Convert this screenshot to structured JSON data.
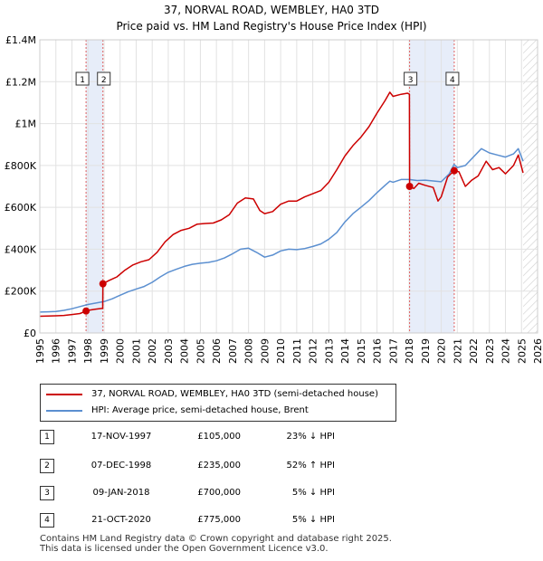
{
  "chart_data": {
    "type": "line",
    "title": "37, NORVAL ROAD, WEMBLEY, HA0 3TD",
    "subtitle": "Price paid vs. HM Land Registry's House Price Index (HPI)",
    "xlabel": "",
    "ylabel": "",
    "xlim": [
      1995,
      2026
    ],
    "ylim": [
      0,
      1400000
    ],
    "x_ticks": [
      1995,
      1996,
      1997,
      1998,
      1999,
      2000,
      2001,
      2002,
      2003,
      2004,
      2005,
      2006,
      2007,
      2008,
      2009,
      2010,
      2011,
      2012,
      2013,
      2014,
      2015,
      2016,
      2017,
      2018,
      2019,
      2020,
      2021,
      2022,
      2023,
      2024,
      2025,
      2026
    ],
    "y_ticks": [
      {
        "value": 0,
        "label": "£0"
      },
      {
        "value": 200000,
        "label": "£200K"
      },
      {
        "value": 400000,
        "label": "£400K"
      },
      {
        "value": 600000,
        "label": "£600K"
      },
      {
        "value": 800000,
        "label": "£800K"
      },
      {
        "value": 1000000,
        "label": "£1M"
      },
      {
        "value": 1200000,
        "label": "£1.2M"
      },
      {
        "value": 1400000,
        "label": "£1.4M"
      }
    ],
    "grid": true,
    "series": [
      {
        "name": "37, NORVAL ROAD, WEMBLEY, HA0 3TD (semi-detached house)",
        "color": "#cc0000",
        "points": [
          [
            1995.0,
            80000
          ],
          [
            1995.5,
            81000
          ],
          [
            1996.0,
            82000
          ],
          [
            1996.5,
            84000
          ],
          [
            1997.0,
            88000
          ],
          [
            1997.5,
            93000
          ],
          [
            1997.88,
            105000
          ],
          [
            1998.0,
            108000
          ],
          [
            1998.5,
            114000
          ],
          [
            1998.92,
            118000
          ],
          [
            1998.93,
            235000
          ],
          [
            1999.3,
            250000
          ],
          [
            1999.8,
            268000
          ],
          [
            2000.3,
            300000
          ],
          [
            2000.8,
            325000
          ],
          [
            2001.3,
            340000
          ],
          [
            2001.8,
            350000
          ],
          [
            2002.3,
            385000
          ],
          [
            2002.8,
            435000
          ],
          [
            2003.3,
            470000
          ],
          [
            2003.8,
            490000
          ],
          [
            2004.3,
            500000
          ],
          [
            2004.8,
            520000
          ],
          [
            2005.3,
            523000
          ],
          [
            2005.8,
            525000
          ],
          [
            2006.3,
            540000
          ],
          [
            2006.8,
            565000
          ],
          [
            2007.3,
            620000
          ],
          [
            2007.8,
            645000
          ],
          [
            2008.3,
            640000
          ],
          [
            2008.7,
            585000
          ],
          [
            2009.0,
            570000
          ],
          [
            2009.5,
            580000
          ],
          [
            2010.0,
            615000
          ],
          [
            2010.5,
            630000
          ],
          [
            2011.0,
            630000
          ],
          [
            2011.5,
            650000
          ],
          [
            2012.0,
            665000
          ],
          [
            2012.5,
            680000
          ],
          [
            2013.0,
            720000
          ],
          [
            2013.5,
            780000
          ],
          [
            2014.0,
            845000
          ],
          [
            2014.5,
            895000
          ],
          [
            2015.0,
            935000
          ],
          [
            2015.5,
            985000
          ],
          [
            2016.0,
            1050000
          ],
          [
            2016.5,
            1110000
          ],
          [
            2016.8,
            1150000
          ],
          [
            2017.0,
            1130000
          ],
          [
            2017.5,
            1140000
          ],
          [
            2017.9,
            1145000
          ],
          [
            2018.02,
            1140000
          ],
          [
            2018.03,
            700000
          ],
          [
            2018.3,
            690000
          ],
          [
            2018.6,
            715000
          ],
          [
            2019.0,
            705000
          ],
          [
            2019.5,
            695000
          ],
          [
            2019.8,
            630000
          ],
          [
            2020.0,
            650000
          ],
          [
            2020.4,
            745000
          ],
          [
            2020.8,
            775000
          ],
          [
            2021.1,
            770000
          ],
          [
            2021.5,
            700000
          ],
          [
            2021.9,
            730000
          ],
          [
            2022.3,
            750000
          ],
          [
            2022.8,
            820000
          ],
          [
            2023.2,
            780000
          ],
          [
            2023.6,
            790000
          ],
          [
            2024.0,
            760000
          ],
          [
            2024.5,
            800000
          ],
          [
            2024.8,
            850000
          ],
          [
            2025.1,
            765000
          ]
        ]
      },
      {
        "name": "HPI: Average price, semi-detached house, Brent",
        "color": "#5b8fd0",
        "points": [
          [
            1995.0,
            100000
          ],
          [
            1995.5,
            101000
          ],
          [
            1996.0,
            103000
          ],
          [
            1996.5,
            108000
          ],
          [
            1997.0,
            116000
          ],
          [
            1997.5,
            126000
          ],
          [
            1998.0,
            136000
          ],
          [
            1998.5,
            143000
          ],
          [
            1999.0,
            150000
          ],
          [
            1999.5,
            163000
          ],
          [
            2000.0,
            180000
          ],
          [
            2000.5,
            197000
          ],
          [
            2001.0,
            210000
          ],
          [
            2001.5,
            222000
          ],
          [
            2002.0,
            242000
          ],
          [
            2002.5,
            268000
          ],
          [
            2003.0,
            290000
          ],
          [
            2003.5,
            304000
          ],
          [
            2004.0,
            318000
          ],
          [
            2004.5,
            328000
          ],
          [
            2005.0,
            333000
          ],
          [
            2005.5,
            337000
          ],
          [
            2006.0,
            345000
          ],
          [
            2006.5,
            358000
          ],
          [
            2007.0,
            378000
          ],
          [
            2007.5,
            400000
          ],
          [
            2008.0,
            405000
          ],
          [
            2008.5,
            385000
          ],
          [
            2009.0,
            362000
          ],
          [
            2009.5,
            372000
          ],
          [
            2010.0,
            392000
          ],
          [
            2010.5,
            400000
          ],
          [
            2011.0,
            398000
          ],
          [
            2011.5,
            403000
          ],
          [
            2012.0,
            413000
          ],
          [
            2012.5,
            425000
          ],
          [
            2013.0,
            448000
          ],
          [
            2013.5,
            480000
          ],
          [
            2014.0,
            530000
          ],
          [
            2014.5,
            570000
          ],
          [
            2015.0,
            600000
          ],
          [
            2015.5,
            632000
          ],
          [
            2016.0,
            670000
          ],
          [
            2016.5,
            705000
          ],
          [
            2016.8,
            725000
          ],
          [
            2017.0,
            720000
          ],
          [
            2017.5,
            733000
          ],
          [
            2018.0,
            733000
          ],
          [
            2018.5,
            728000
          ],
          [
            2019.0,
            730000
          ],
          [
            2019.5,
            726000
          ],
          [
            2020.0,
            722000
          ],
          [
            2020.5,
            760000
          ],
          [
            2020.8,
            805000
          ],
          [
            2021.0,
            790000
          ],
          [
            2021.5,
            800000
          ],
          [
            2022.0,
            840000
          ],
          [
            2022.5,
            880000
          ],
          [
            2023.0,
            860000
          ],
          [
            2023.5,
            850000
          ],
          [
            2024.0,
            840000
          ],
          [
            2024.5,
            855000
          ],
          [
            2024.8,
            880000
          ],
          [
            2025.1,
            820000
          ]
        ]
      }
    ],
    "sales": [
      {
        "id": "1",
        "x": 1997.88,
        "price": 105000
      },
      {
        "id": "2",
        "x": 1998.93,
        "price": 235000
      },
      {
        "id": "3",
        "x": 2018.03,
        "price": 700000
      },
      {
        "id": "4",
        "x": 2020.81,
        "price": 775000
      }
    ],
    "shaded_ranges": [
      [
        1997.88,
        1998.93
      ],
      [
        2018.03,
        2020.81
      ]
    ],
    "future_hatch_from": 2025.1,
    "legend_position": "below"
  },
  "legend": {
    "property_label": "37, NORVAL ROAD, WEMBLEY, HA0 3TD (semi-detached house)",
    "hpi_label": "HPI: Average price, semi-detached house, Brent"
  },
  "sales_table": [
    {
      "num": "1",
      "date": "17-NOV-1997",
      "price": "£105,000",
      "hpi": "23% ↓ HPI"
    },
    {
      "num": "2",
      "date": "07-DEC-1998",
      "price": "£235,000",
      "hpi": "52% ↑ HPI"
    },
    {
      "num": "3",
      "date": "09-JAN-2018",
      "price": "£700,000",
      "hpi": "5% ↓ HPI"
    },
    {
      "num": "4",
      "date": "21-OCT-2020",
      "price": "£775,000",
      "hpi": "5% ↓ HPI"
    }
  ],
  "footer": {
    "line1": "Contains HM Land Registry data © Crown copyright and database right 2025.",
    "line2": "This data is licensed under the Open Government Licence v3.0."
  }
}
